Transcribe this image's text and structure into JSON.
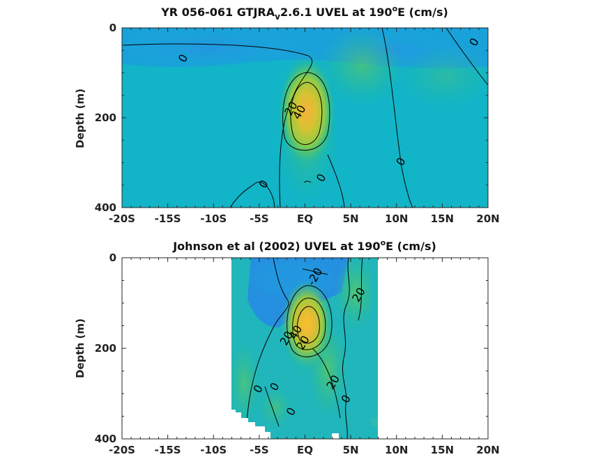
{
  "chart_data": [
    {
      "type": "heatmap",
      "title_main": "YR 056-061 GTJRA",
      "title_sub": "v",
      "title_rest": "2.6.1 UVEL at 190",
      "title_sup": "o",
      "title_end": "E (cm/s)",
      "ylabel": "Depth (m)",
      "xlim": [
        -20,
        20
      ],
      "ylim": [
        400,
        0
      ],
      "xticks": [
        -20,
        -15,
        -10,
        -5,
        0,
        5,
        10,
        15,
        20
      ],
      "xticklabels": [
        "-20S",
        "-15S",
        "-10S",
        "-5S",
        "EQ",
        "5N",
        "10N",
        "15N",
        "20N"
      ],
      "yticks": [
        0,
        200,
        400
      ],
      "yticklabels": [
        "0",
        "200",
        "400"
      ],
      "data_extent": [
        -20,
        20
      ],
      "core": {
        "lat": 0.2,
        "depth": 160,
        "max": 60
      },
      "contour_labels": [
        {
          "text": "0",
          "lat": -13.3,
          "depth": 68
        },
        {
          "text": "20",
          "lat": -1.5,
          "depth": 180
        },
        {
          "text": "40",
          "lat": -0.6,
          "depth": 188
        },
        {
          "text": "0",
          "lat": 1.8,
          "depth": 334
        },
        {
          "text": "0",
          "lat": -4.5,
          "depth": 348
        },
        {
          "text": "0",
          "lat": 10.5,
          "depth": 298
        },
        {
          "text": "0",
          "lat": 18.5,
          "depth": 32
        }
      ]
    },
    {
      "type": "heatmap",
      "title_main": "Johnson et al (2002) UVEL at 190",
      "title_sup": "o",
      "title_end": "E (cm/s)",
      "ylabel": "Depth (m)",
      "xlim": [
        -20,
        20
      ],
      "ylim": [
        400,
        0
      ],
      "xticks": [
        -20,
        -15,
        -10,
        -5,
        0,
        5,
        10,
        15,
        20
      ],
      "xticklabels": [
        "-20S",
        "-15S",
        "-10S",
        "-5S",
        "EQ",
        "5N",
        "10N",
        "15N",
        "20N"
      ],
      "yticks": [
        0,
        200,
        400
      ],
      "yticklabels": [
        "0",
        "200",
        "400"
      ],
      "data_extent": [
        -8,
        8
      ],
      "core": {
        "lat": 0.3,
        "depth": 155,
        "max": 70
      },
      "contour_labels": [
        {
          "text": "-20",
          "lat": 1.1,
          "depth": 42
        },
        {
          "text": "20",
          "lat": 5.9,
          "depth": 82
        },
        {
          "text": "20",
          "lat": -2.0,
          "depth": 178
        },
        {
          "text": "40",
          "lat": -1.0,
          "depth": 165
        },
        {
          "text": "20",
          "lat": -0.2,
          "depth": 188
        },
        {
          "text": "20",
          "lat": 3.1,
          "depth": 275
        },
        {
          "text": "0",
          "lat": 4.5,
          "depth": 312
        },
        {
          "text": "0",
          "lat": -5.1,
          "depth": 290
        },
        {
          "text": "0",
          "lat": -3.3,
          "depth": 285
        },
        {
          "text": "0",
          "lat": -1.5,
          "depth": 340
        }
      ]
    }
  ]
}
